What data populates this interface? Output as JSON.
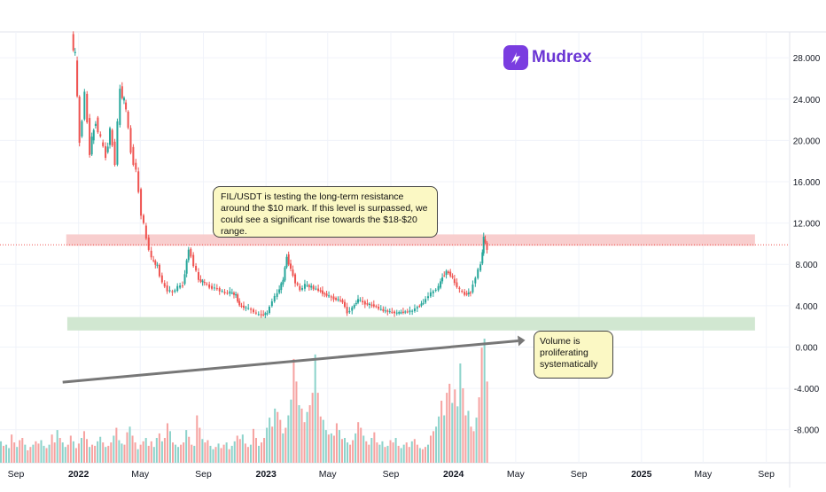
{
  "brand": {
    "name": "Mudrex",
    "color": "#7a3de0",
    "icon": "lightning-icon"
  },
  "annotations": {
    "resistance_note": "FIL/USDT is testing the long-term resistance around the $10 mark. If this level is surpassed, we could see a significant rise towards the $18-$20 range.",
    "volume_note": "Volume is proliferating systematically"
  },
  "colors": {
    "up": "#26a69a",
    "down": "#ef5350",
    "up_volume": "#8dd3cb",
    "down_volume": "#f6a3a1",
    "resistance_zone": "#f7c9c9",
    "support_zone": "#cfe6cf",
    "price_line": "#ef5350",
    "trend_line": "#777777",
    "grid": "#f0f3fa",
    "axis_text": "#131722"
  },
  "chart_data": {
    "type": "candlestick",
    "title": "",
    "y_axis": {
      "side": "right",
      "ticks": [
        28,
        24,
        20,
        16,
        12,
        8,
        4,
        0,
        -4,
        -8
      ],
      "tick_labels": [
        "28.000",
        "24.000",
        "20.000",
        "16.000",
        "12.000",
        "8.000",
        "4.000",
        "0.000",
        "-4.000",
        "-8.000"
      ],
      "ylim": [
        -11.2,
        30.5
      ]
    },
    "x_axis": {
      "tick_labels": [
        "Sep",
        "2022",
        "May",
        "Sep",
        "2023",
        "May",
        "Sep",
        "2024",
        "May",
        "Sep",
        "2025",
        "May",
        "Sep"
      ],
      "tick_dates": [
        "2021-09-01",
        "2022-01-01",
        "2022-05-01",
        "2022-09-01",
        "2023-01-01",
        "2023-05-01",
        "2023-09-01",
        "2024-01-01",
        "2024-05-01",
        "2024-09-01",
        "2025-01-01",
        "2025-05-01",
        "2025-09-01"
      ],
      "bold_labels": [
        "2022",
        "2023",
        "2024",
        "2025"
      ],
      "start": "2021-08-01",
      "end": "2025-10-01"
    },
    "resistance_zone": {
      "from": 9.8,
      "to": 10.9,
      "start": "2021-12-08",
      "end": "2025-08-10"
    },
    "support_zone": {
      "from": 1.6,
      "to": 2.9,
      "start": "2021-12-10",
      "end": "2025-08-10"
    },
    "current_price_line": 9.9,
    "trend_line": {
      "start": {
        "date": "2021-12-01",
        "value": -3.4
      },
      "end": {
        "date": "2024-03-15",
        "value": 0.6
      }
    },
    "price_series": [
      {
        "date": "2021-12-20",
        "value": 30.0
      },
      {
        "date": "2021-12-27",
        "value": 28.0
      },
      {
        "date": "2022-01-05",
        "value": 20.0
      },
      {
        "date": "2022-01-15",
        "value": 24.5
      },
      {
        "date": "2022-01-25",
        "value": 19.0
      },
      {
        "date": "2022-02-05",
        "value": 22.0
      },
      {
        "date": "2022-02-15",
        "value": 20.0
      },
      {
        "date": "2022-02-25",
        "value": 18.5
      },
      {
        "date": "2022-03-05",
        "value": 21.0
      },
      {
        "date": "2022-03-15",
        "value": 18.0
      },
      {
        "date": "2022-03-25",
        "value": 25.0
      },
      {
        "date": "2022-04-05",
        "value": 23.0
      },
      {
        "date": "2022-04-15",
        "value": 19.0
      },
      {
        "date": "2022-04-25",
        "value": 17.0
      },
      {
        "date": "2022-05-05",
        "value": 13.0
      },
      {
        "date": "2022-05-15",
        "value": 10.5
      },
      {
        "date": "2022-05-25",
        "value": 8.5
      },
      {
        "date": "2022-06-05",
        "value": 7.8
      },
      {
        "date": "2022-06-15",
        "value": 6.2
      },
      {
        "date": "2022-06-25",
        "value": 5.5
      },
      {
        "date": "2022-07-05",
        "value": 5.3
      },
      {
        "date": "2022-07-15",
        "value": 5.8
      },
      {
        "date": "2022-07-25",
        "value": 6.0
      },
      {
        "date": "2022-08-05",
        "value": 9.5
      },
      {
        "date": "2022-08-15",
        "value": 8.0
      },
      {
        "date": "2022-08-25",
        "value": 6.5
      },
      {
        "date": "2022-09-05",
        "value": 6.2
      },
      {
        "date": "2022-09-15",
        "value": 5.8
      },
      {
        "date": "2022-09-25",
        "value": 5.7
      },
      {
        "date": "2022-10-05",
        "value": 5.5
      },
      {
        "date": "2022-10-15",
        "value": 5.2
      },
      {
        "date": "2022-10-25",
        "value": 5.3
      },
      {
        "date": "2022-11-05",
        "value": 5.0
      },
      {
        "date": "2022-11-12",
        "value": 4.0
      },
      {
        "date": "2022-11-25",
        "value": 3.8
      },
      {
        "date": "2022-12-05",
        "value": 3.6
      },
      {
        "date": "2022-12-15",
        "value": 3.2
      },
      {
        "date": "2022-12-25",
        "value": 3.1
      },
      {
        "date": "2023-01-05",
        "value": 3.3
      },
      {
        "date": "2023-01-15",
        "value": 4.5
      },
      {
        "date": "2023-01-25",
        "value": 5.2
      },
      {
        "date": "2023-02-05",
        "value": 6.5
      },
      {
        "date": "2023-02-12",
        "value": 8.8
      },
      {
        "date": "2023-02-20",
        "value": 7.5
      },
      {
        "date": "2023-03-01",
        "value": 6.3
      },
      {
        "date": "2023-03-10",
        "value": 5.5
      },
      {
        "date": "2023-03-20",
        "value": 6.0
      },
      {
        "date": "2023-04-01",
        "value": 5.8
      },
      {
        "date": "2023-04-15",
        "value": 5.5
      },
      {
        "date": "2023-05-01",
        "value": 5.0
      },
      {
        "date": "2023-05-15",
        "value": 4.7
      },
      {
        "date": "2023-06-01",
        "value": 4.4
      },
      {
        "date": "2023-06-10",
        "value": 3.3
      },
      {
        "date": "2023-06-20",
        "value": 3.8
      },
      {
        "date": "2023-07-01",
        "value": 4.6
      },
      {
        "date": "2023-07-15",
        "value": 4.2
      },
      {
        "date": "2023-08-01",
        "value": 4.0
      },
      {
        "date": "2023-08-15",
        "value": 3.6
      },
      {
        "date": "2023-09-01",
        "value": 3.4
      },
      {
        "date": "2023-09-15",
        "value": 3.3
      },
      {
        "date": "2023-10-01",
        "value": 3.4
      },
      {
        "date": "2023-10-15",
        "value": 3.5
      },
      {
        "date": "2023-10-25",
        "value": 3.9
      },
      {
        "date": "2023-11-05",
        "value": 4.3
      },
      {
        "date": "2023-11-15",
        "value": 5.0
      },
      {
        "date": "2023-11-25",
        "value": 5.4
      },
      {
        "date": "2023-12-05",
        "value": 5.8
      },
      {
        "date": "2023-12-12",
        "value": 6.8
      },
      {
        "date": "2023-12-20",
        "value": 7.3
      },
      {
        "date": "2023-12-28",
        "value": 7.0
      },
      {
        "date": "2024-01-05",
        "value": 6.2
      },
      {
        "date": "2024-01-15",
        "value": 5.5
      },
      {
        "date": "2024-01-25",
        "value": 5.1
      },
      {
        "date": "2024-02-05",
        "value": 5.3
      },
      {
        "date": "2024-02-15",
        "value": 6.8
      },
      {
        "date": "2024-02-25",
        "value": 8.0
      },
      {
        "date": "2024-03-01",
        "value": 10.5
      },
      {
        "date": "2024-03-08",
        "value": 9.5
      }
    ],
    "volume_series": [
      1.9,
      1.5,
      1.6,
      1.3,
      2.5,
      1.8,
      1.4,
      2.0,
      2.2,
      1.6,
      1.1,
      1.4,
      1.6,
      1.9,
      1.7,
      2.0,
      1.5,
      1.3,
      1.6,
      2.5,
      1.8,
      2.9,
      2.2,
      1.8,
      1.4,
      1.6,
      2.4,
      1.9,
      1.3,
      1.7,
      2.2,
      2.8,
      2.1,
      1.4,
      1.6,
      1.5,
      1.9,
      2.3,
      1.8,
      1.4,
      1.5,
      1.8,
      2.4,
      3.1,
      2.0,
      1.7,
      1.6,
      2.7,
      3.2,
      2.4,
      1.8,
      1.2,
      1.6,
      1.9,
      2.2,
      1.5,
      1.9,
      1.4,
      2.2,
      2.6,
      1.9,
      2.2,
      3.5,
      2.8,
      1.8,
      1.6,
      1.4,
      1.6,
      1.8,
      2.9,
      2.3,
      1.6,
      1.5,
      4.2,
      3.1,
      2.1,
      1.8,
      2.0,
      1.5,
      1.2,
      1.4,
      1.7,
      1.3,
      1.6,
      1.8,
      1.2,
      1.5,
      1.9,
      2.4,
      2.1,
      2.5,
      1.7,
      1.4,
      1.6,
      3.0,
      2.2,
      1.5,
      1.8,
      2.2,
      3.1,
      4.0,
      3.2,
      4.8,
      4.5,
      3.8,
      2.6,
      3.1,
      4.2,
      5.6,
      9.2,
      7.2,
      5.1,
      4.8,
      3.6,
      4.5,
      5.1,
      6.2,
      9.6,
      6.2,
      4.1,
      3.8,
      2.9,
      2.5,
      2.6,
      2.4,
      3.5,
      2.9,
      2.1,
      2.2,
      1.8,
      1.6,
      2.0,
      2.6,
      3.6,
      3.1,
      2.4,
      1.9,
      1.6,
      2.2,
      2.7,
      1.8,
      1.6,
      1.9,
      1.4,
      1.5,
      2.0,
      1.8,
      2.2,
      1.5,
      1.3,
      1.6,
      1.8,
      1.4,
      1.9,
      2.1,
      1.6,
      1.3,
      1.2,
      1.4,
      1.6,
      2.4,
      2.8,
      3.2,
      4.1,
      5.5,
      4.2,
      6.2,
      7.0,
      5.3,
      6.5,
      5.0,
      8.8,
      6.6,
      4.2,
      4.6,
      3.2,
      2.8,
      4.0,
      5.8,
      10.2,
      11.0,
      7.2
    ]
  }
}
